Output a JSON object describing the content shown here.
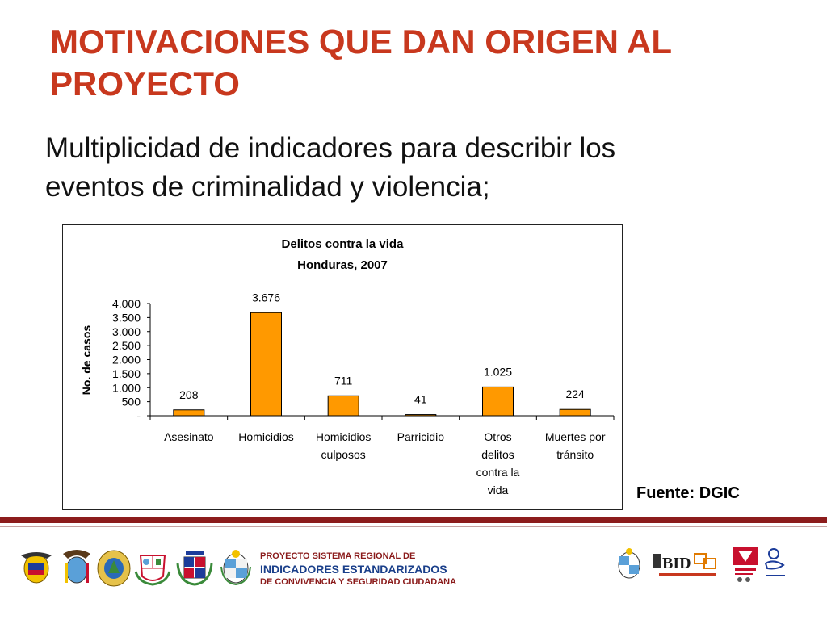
{
  "slide": {
    "title_lines": [
      "MOTIVACIONES QUE DAN ORIGEN AL",
      "PROYECTO"
    ],
    "bullet_lines": [
      "Multiplicidad de indicadores para describir los",
      "eventos de criminalidad y violencia;"
    ],
    "source": "Fuente: DGIC"
  },
  "chart_data": {
    "type": "bar",
    "title": "Delitos contra la vida",
    "subtitle": "Honduras, 2007",
    "ylabel": "No. de casos",
    "xlabel": "",
    "categories": [
      [
        "Asesinato"
      ],
      [
        "Homicidios"
      ],
      [
        "Homicidios",
        "culposos"
      ],
      [
        "Parricidio"
      ],
      [
        "Otros",
        "delitos",
        "contra la",
        "vida"
      ],
      [
        "Muertes por",
        "tránsito"
      ]
    ],
    "values": [
      208,
      3676,
      711,
      41,
      1025,
      224
    ],
    "value_labels": [
      "208",
      "3.676",
      "711",
      "41",
      "1.025",
      "224"
    ],
    "ylim": [
      0,
      4000
    ],
    "yticks": [
      0,
      500,
      1000,
      1500,
      2000,
      2500,
      3000,
      3500,
      4000
    ],
    "ytick_labels": [
      "-",
      "500",
      "1.000",
      "1.500",
      "2.000",
      "2.500",
      "3.000",
      "3.500",
      "4.000"
    ],
    "bar_color": "#ff9900",
    "grid": false,
    "legend": "none"
  },
  "footer": {
    "line1": "PROYECTO SISTEMA REGIONAL DE",
    "line2": "INDICADORES ESTANDARIZADOS",
    "line3": "DE CONVIVENCIA Y SEGURIDAD  CIUDADANA",
    "bid_logo_text": "BID",
    "left_logos": [
      "colombia-seal-icon",
      "ecuador-seal-icon",
      "honduras-seal-icon",
      "peru-seal-icon",
      "dominican-republic-seal-icon",
      "uruguay-seal-icon"
    ],
    "right_logos": [
      "uruguay-seal-icon",
      "bid-logo-icon",
      "universidad-del-valle-logo-icon",
      "cisalva-logo-icon"
    ]
  }
}
